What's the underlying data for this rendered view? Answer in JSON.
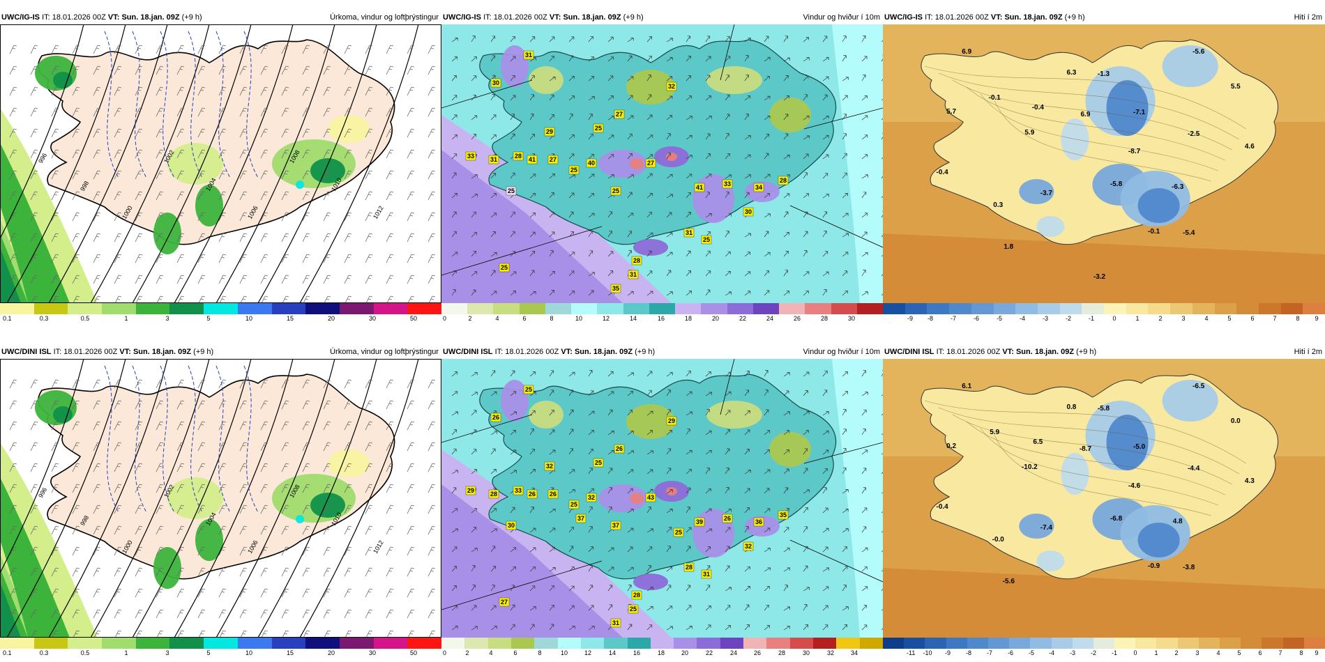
{
  "rows": [
    {
      "panels": [
        {
          "model": "UWC/IG-IS",
          "it_label": "IT:",
          "it": "18.01.2026 00Z",
          "vt_label": "VT:",
          "vt": "Sun. 18.jan. 09Z",
          "lead": "(+9 h)",
          "title": "Úrkoma, vindur og loftþrýstingur",
          "kind": "precip",
          "ticks": [
            "0.1",
            "0.3",
            "0.5",
            "1",
            "3",
            "5",
            "10",
            "15",
            "20",
            "30",
            "50"
          ],
          "colors": [
            "#f8f4a0",
            "#c8c814",
            "#d4ee8c",
            "#a0dc6e",
            "#3cb43c",
            "#10904a",
            "#00e8e0",
            "#3c78f0",
            "#2840c0",
            "#10107c",
            "#7c1870",
            "#d41488",
            "#ff1414"
          ],
          "isobars": [
            "996",
            "998",
            "1000",
            "1002",
            "1004",
            "1006",
            "1008",
            "1010",
            "1012"
          ]
        },
        {
          "model": "UWC/IG-IS",
          "it_label": "IT:",
          "it": "18.01.2026 00Z",
          "vt_label": "VT:",
          "vt": "Sun. 18.jan. 09Z",
          "lead": "(+9 h)",
          "title": "Vindur og hviður í 10m",
          "kind": "wind",
          "ticks": [
            "0",
            "2",
            "4",
            "6",
            "8",
            "10",
            "12",
            "14",
            "16",
            "18",
            "20",
            "22",
            "24",
            "26",
            "28",
            "30"
          ],
          "colors": [
            "#f4f8ec",
            "#dce8b0",
            "#c8dc80",
            "#aac850",
            "#9ed8d8",
            "#b4fcfc",
            "#8ee8e8",
            "#5cc8c8",
            "#2ca8a8",
            "#c8b4f0",
            "#a890e8",
            "#8c6cd8",
            "#6c44c0",
            "#f0b4b4",
            "#e88080",
            "#d44c4c",
            "#b42020"
          ],
          "gusts": [
            "31",
            "30",
            "32",
            "27",
            "25",
            "29",
            "27",
            "33",
            "31",
            "28",
            "41",
            "40",
            "25",
            "27",
            "41",
            "33",
            "34",
            "28",
            "30",
            "31",
            "25",
            "28",
            "31",
            "25",
            "35",
            "25",
            "25"
          ]
        },
        {
          "model": "UWC/IG-IS",
          "it_label": "IT:",
          "it": "18.01.2026 00Z",
          "vt_label": "VT:",
          "vt": "Sun. 18.jan. 09Z",
          "lead": "(+9 h)",
          "title": "Hiti í 2m",
          "kind": "temp",
          "ticks": [
            "-9",
            "-8",
            "-7",
            "-6",
            "-5",
            "-4",
            "-3",
            "-2",
            "-1",
            "0",
            "1",
            "2",
            "3",
            "4",
            "5",
            "6",
            "7",
            "8",
            "9"
          ],
          "colors": [
            "#1850a0",
            "#2c64b4",
            "#3c78c4",
            "#5088cc",
            "#6498d4",
            "#78a8dc",
            "#90bce4",
            "#a8cce8",
            "#c0dcec",
            "#e4ecdc",
            "#fcf4b4",
            "#f8e8a0",
            "#f4dc8c",
            "#ecc874",
            "#e4b45c",
            "#dca048",
            "#d48c38",
            "#cc782c",
            "#c46424",
            "#dc8040"
          ],
          "temps": [
            "6.9",
            "6.3",
            "-1.3",
            "-5.6",
            "5.7",
            "-0.1",
            "-0.4",
            "6.9",
            "-7.1",
            "5.5",
            "5.9",
            "-2.5",
            "4.6",
            "-0.4",
            "-8.7",
            "-3.7",
            "-5.8",
            "-6.3",
            "0.3",
            "-0.1",
            "1.8",
            "-5.4",
            "-3.2"
          ]
        }
      ]
    },
    {
      "panels": [
        {
          "model": "UWC/DINI ISL",
          "it_label": "IT:",
          "it": "18.01.2026 00Z",
          "vt_label": "VT:",
          "vt": "Sun. 18.jan. 09Z",
          "lead": "(+9 h)",
          "title": "Úrkoma, vindur og loftþrýstingur",
          "kind": "precip",
          "ticks": [
            "0.1",
            "0.3",
            "0.5",
            "1",
            "3",
            "5",
            "10",
            "15",
            "20",
            "30",
            "50"
          ],
          "colors": [
            "#f8f4a0",
            "#c8c814",
            "#d4ee8c",
            "#a0dc6e",
            "#3cb43c",
            "#10904a",
            "#00e8e0",
            "#3c78f0",
            "#2840c0",
            "#10107c",
            "#7c1870",
            "#d41488",
            "#ff1414"
          ],
          "isobars": [
            "996",
            "998",
            "1000",
            "1002",
            "1004",
            "1006",
            "1008",
            "1010",
            "1012"
          ]
        },
        {
          "model": "UWC/DINI ISL",
          "it_label": "IT:",
          "it": "18.01.2026 00Z",
          "vt_label": "VT:",
          "vt": "Sun. 18.jan. 09Z",
          "lead": "(+9 h)",
          "title": "Vindur og hviður í 10m",
          "kind": "wind",
          "ticks": [
            "0",
            "2",
            "4",
            "6",
            "8",
            "10",
            "12",
            "14",
            "16",
            "18",
            "20",
            "22",
            "24",
            "26",
            "28",
            "30",
            "32",
            "34"
          ],
          "colors": [
            "#f4f8ec",
            "#dce8b0",
            "#c8dc80",
            "#aac850",
            "#9ed8d8",
            "#b4fcfc",
            "#8ee8e8",
            "#5cc8c8",
            "#2ca8a8",
            "#c8b4f0",
            "#a890e8",
            "#8c6cd8",
            "#6c44c0",
            "#f0b4b4",
            "#e88080",
            "#d44c4c",
            "#b42020",
            "#f0c814",
            "#d0a800"
          ],
          "gusts": [
            "25",
            "26",
            "29",
            "26",
            "25",
            "32",
            "26",
            "29",
            "28",
            "33",
            "26",
            "32",
            "37",
            "43",
            "39",
            "26",
            "36",
            "35",
            "32",
            "28",
            "31",
            "28",
            "25",
            "30",
            "31",
            "27",
            "25",
            "37",
            "25"
          ]
        },
        {
          "model": "UWC/DINI ISL",
          "it_label": "IT:",
          "it": "18.01.2026 00Z",
          "vt_label": "VT:",
          "vt": "Sun. 18.jan. 09Z",
          "lead": "(+9 h)",
          "title": "Hiti í 2m",
          "kind": "temp",
          "ticks": [
            "-11",
            "-10",
            "-9",
            "-8",
            "-7",
            "-6",
            "-5",
            "-4",
            "-3",
            "-2",
            "-1",
            "0",
            "1",
            "2",
            "3",
            "4",
            "5",
            "6",
            "7",
            "8",
            "9"
          ],
          "colors": [
            "#103c8c",
            "#1850a0",
            "#2c64b4",
            "#3c78c4",
            "#5088cc",
            "#6498d4",
            "#78a8dc",
            "#90bce4",
            "#a8cce8",
            "#c0dcec",
            "#e4ecdc",
            "#fcf4b4",
            "#f8e8a0",
            "#f4dc8c",
            "#ecc874",
            "#e4b45c",
            "#dca048",
            "#d48c38",
            "#cc782c",
            "#c46424",
            "#dc8040"
          ],
          "temps": [
            "6.1",
            "0.8",
            "-5.8",
            "-6.5",
            "0.2",
            "5.9",
            "6.5",
            "-8.7",
            "-5.0",
            "0.0",
            "-10.2",
            "-4.4",
            "4.3",
            "-0.4",
            "-4.6",
            "-7.4",
            "-6.8",
            "4.8",
            "-0.0",
            "-0.9",
            "-5.6",
            "-3.8"
          ]
        }
      ]
    }
  ]
}
